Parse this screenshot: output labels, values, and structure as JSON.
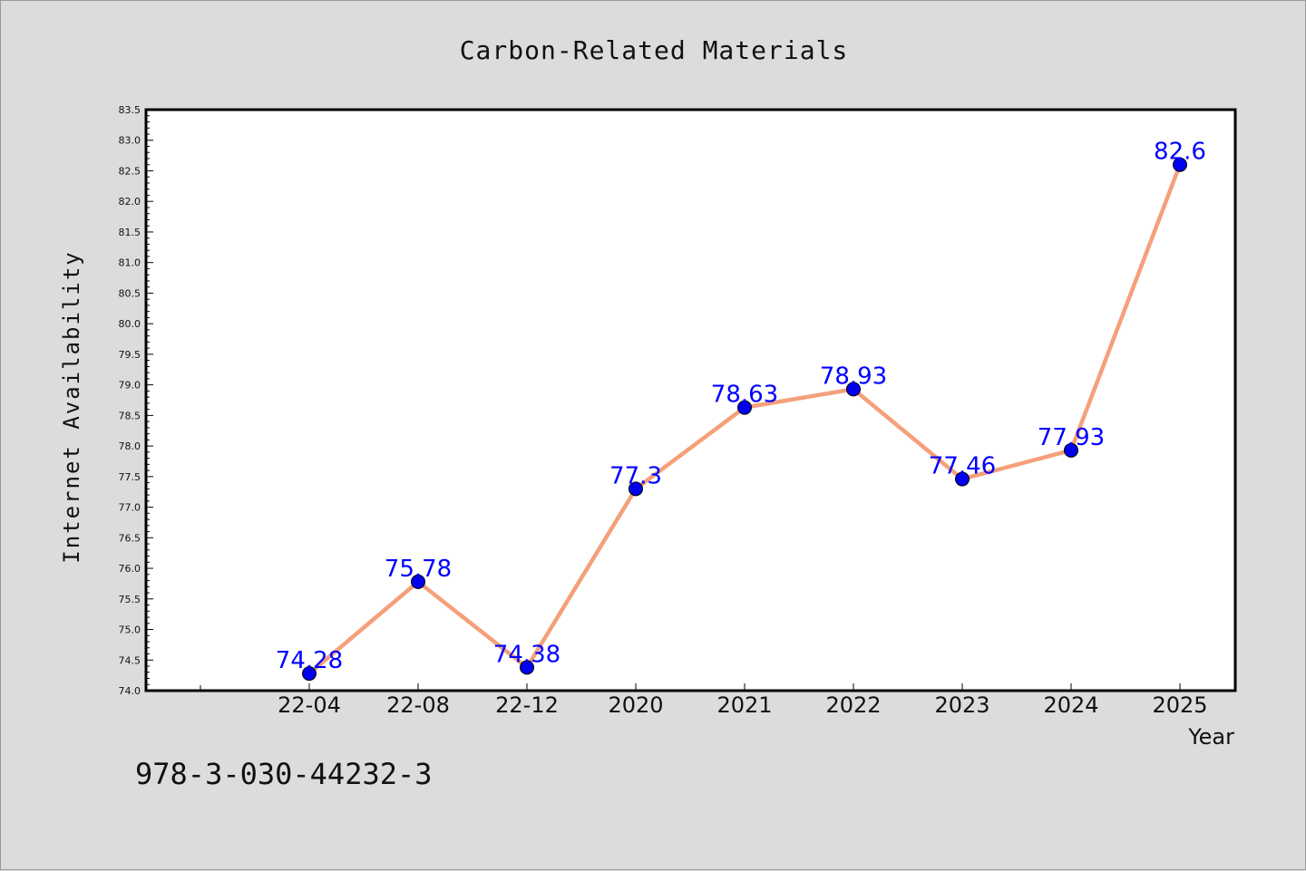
{
  "chart_data": {
    "type": "line",
    "title": "Carbon-Related Materials",
    "xlabel": "Year",
    "ylabel": "Internet Availability",
    "categories": [
      "22-04",
      "22-08",
      "22-12",
      "2020",
      "2021",
      "2022",
      "2023",
      "2024",
      "2025"
    ],
    "series": [
      {
        "values": [
          74.28,
          75.78,
          74.38,
          77.3,
          78.63,
          78.93,
          77.46,
          77.93,
          82.6
        ]
      }
    ],
    "data_labels": [
      "74.28",
      "75.78",
      "74.38",
      "77.3",
      "78.63",
      "78.93",
      "77.46",
      "77.93",
      "82.6"
    ],
    "ylim": [
      74.0,
      83.5
    ],
    "yticks": [
      74.0,
      74.5,
      75.0,
      75.5,
      76.0,
      76.5,
      77.0,
      77.5,
      78.0,
      78.5,
      79.0,
      79.5,
      80.0,
      80.5,
      81.0,
      81.5,
      82.0,
      82.5,
      83.0,
      83.5
    ],
    "ytick_labels": [
      "74.0",
      "74.5",
      "75.0",
      "75.5",
      "76.0",
      "76.5",
      "77.0",
      "77.5",
      "78.0",
      "78.5",
      "79.0",
      "79.5",
      "80.0",
      "80.5",
      "81.0",
      "81.5",
      "82.0",
      "82.5",
      "83.0",
      "83.5"
    ],
    "grid": false,
    "colors": {
      "line": "#f4a07a",
      "marker": "#0000ee",
      "data_label": "#0000ff",
      "plot_bg": "#ffffff",
      "page_bg": "#dcdcdc"
    }
  },
  "footer": {
    "isbn": "978-3-030-44232-3"
  }
}
